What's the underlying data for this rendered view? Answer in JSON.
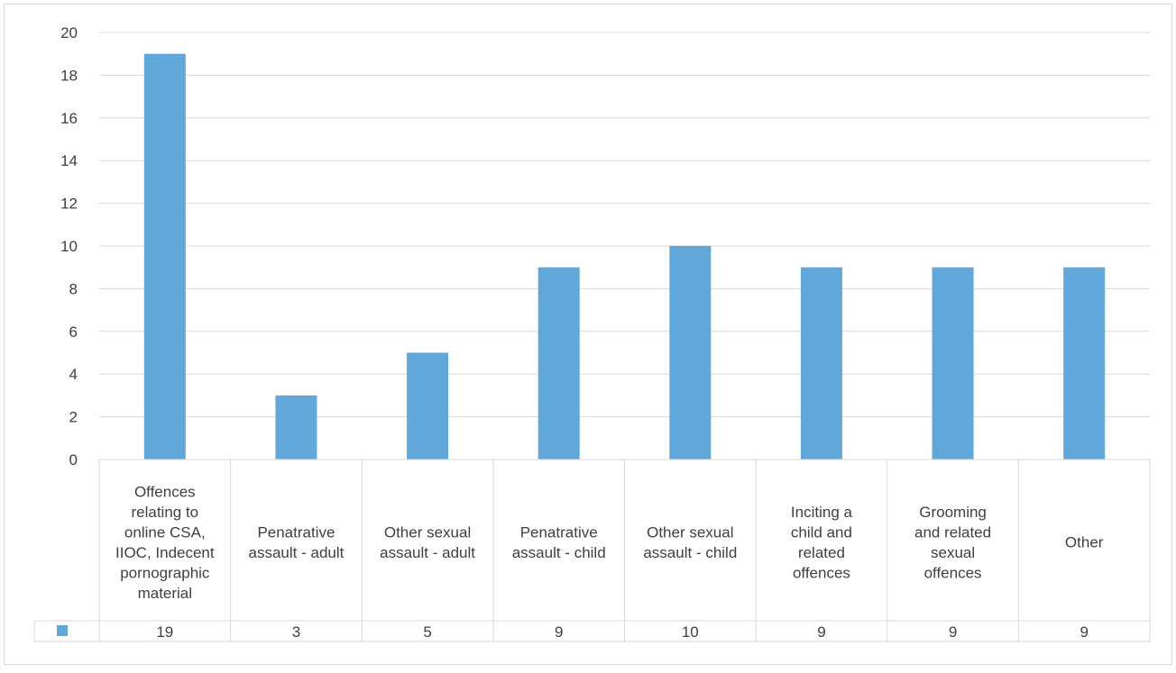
{
  "chart_data": {
    "type": "bar",
    "title": "",
    "xlabel": "",
    "ylabel": "",
    "ylim": [
      0,
      20
    ],
    "y_ticks": [
      "0",
      "2",
      "4",
      "6",
      "8",
      "10",
      "12",
      "14",
      "16",
      "18",
      "20"
    ],
    "grid": true,
    "legend": "data-table-left",
    "categories": [
      [
        "Offences",
        "relating to",
        "online CSA,",
        "IIOC, Indecent",
        "pornographic",
        "material"
      ],
      [
        "Penatrative",
        "assault - adult"
      ],
      [
        "Other sexual",
        "assault - adult"
      ],
      [
        "Penatrative",
        "assault - child"
      ],
      [
        "Other sexual",
        "assault - child"
      ],
      [
        "Inciting a",
        "child and",
        "related",
        "offences"
      ],
      [
        "Grooming",
        "and related",
        "sexual",
        "offences"
      ],
      [
        "Other"
      ]
    ],
    "values": [
      19,
      3,
      5,
      9,
      10,
      9,
      9,
      9
    ],
    "value_labels": [
      "19",
      "3",
      "5",
      "9",
      "10",
      "9",
      "9",
      "9"
    ],
    "series_color": "#5fa8d9",
    "gridline_color": "#d9d9d9",
    "border_color": "#d9d9d9",
    "text_color": "#404040",
    "legend_icon": "square-icon"
  }
}
